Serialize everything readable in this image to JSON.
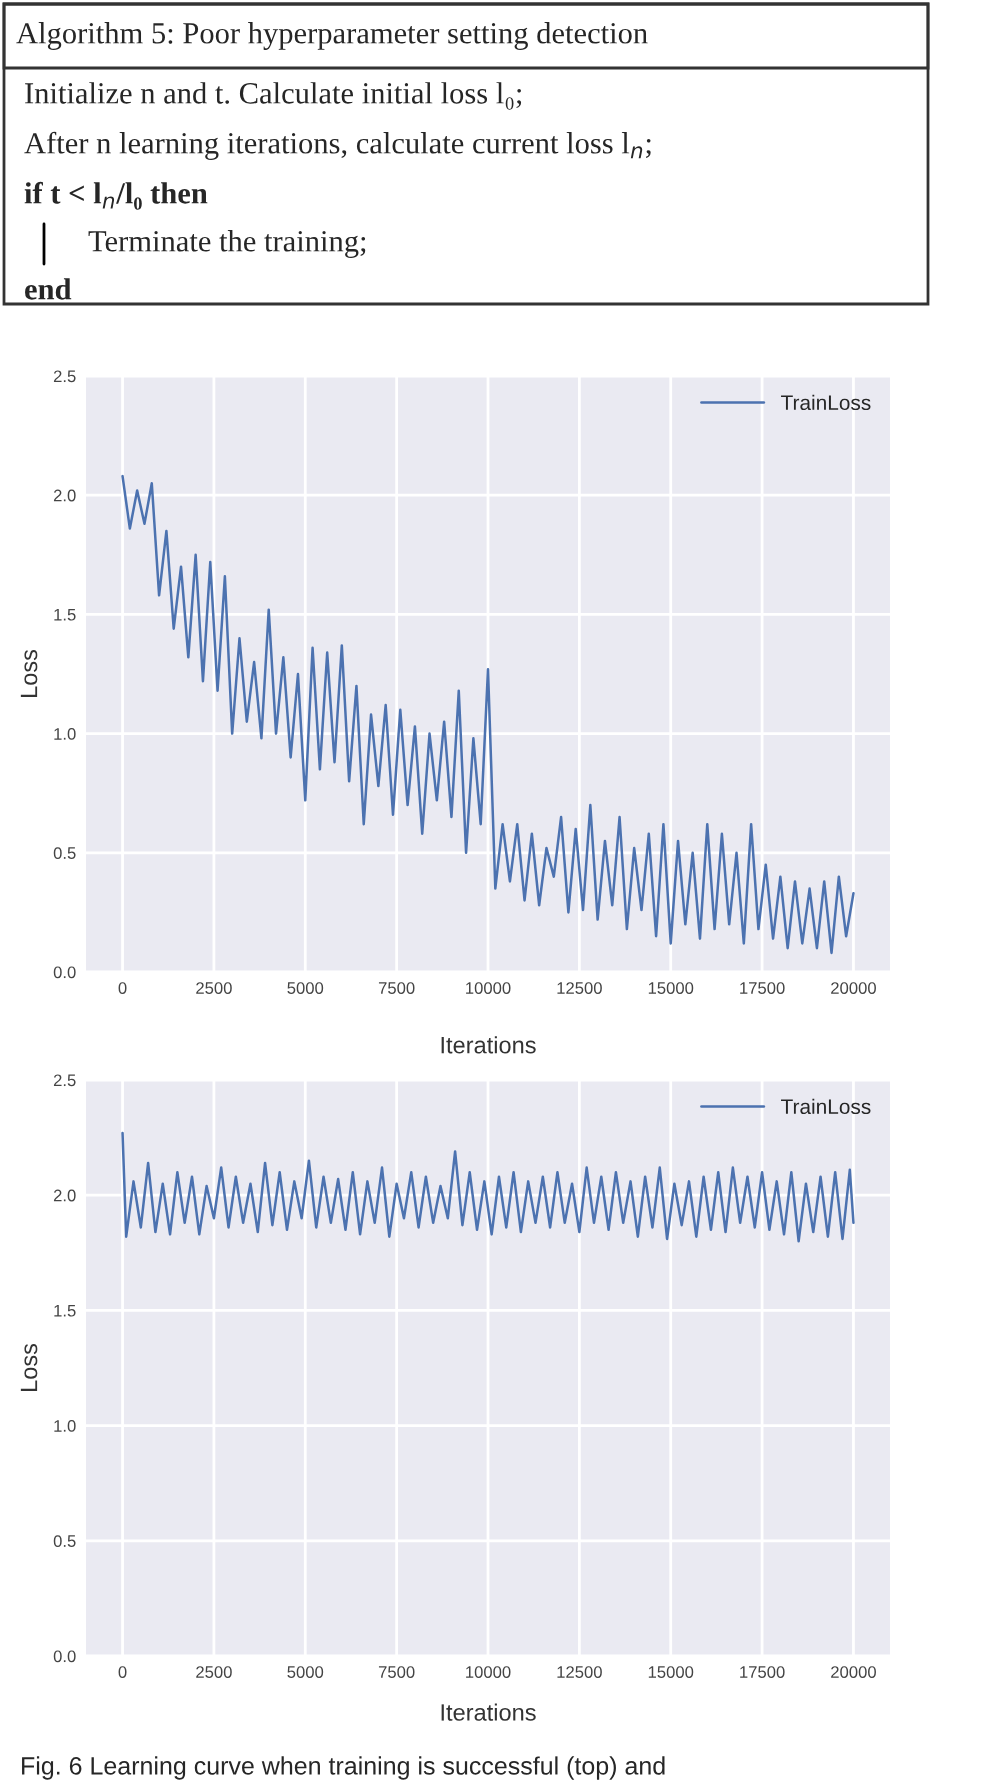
{
  "chart_data": [
    {
      "type": "line",
      "xlabel": "Iterations",
      "ylabel": "Loss",
      "annotations": [
        "Algorithm 5: Poor hyperparameter setting detection",
        "Initialize n and t. Calculate initial loss l₀;",
        "After n learning iterations, calculate current loss l$_{n}$;",
        "if t < l$_{n}$/l₀ then",
        "Terminate the training;",
        "end"
      ],
      "xlim": [
        -1000,
        21000
      ],
      "xticks": [
        0,
        2500,
        5000,
        7500,
        10000,
        12500,
        15000,
        17500,
        20000
      ],
      "ylim": [
        0,
        2.5
      ],
      "yticks": [
        {
          "value": 0,
          "label": "0.0"
        },
        0.5,
        {
          "value": 1,
          "label": "1.0"
        },
        1.5,
        {
          "value": 2,
          "label": "2.0"
        },
        2.5
      ],
      "grid": true,
      "legend": "top right",
      "marker": "none",
      "line_style": "solid",
      "series": [
        {
          "name": "TrainLoss",
          "color": "#4c72b0",
          "x": [
            0,
            200,
            400,
            600,
            800,
            1000,
            1200,
            1400,
            1600,
            1800,
            2000,
            2200,
            2400,
            2600,
            2800,
            3000,
            3200,
            3400,
            3600,
            3800,
            4000,
            4200,
            4400,
            4600,
            4800,
            5000,
            5200,
            5400,
            5600,
            5800,
            6000,
            6200,
            6400,
            6600,
            6800,
            7000,
            7200,
            7400,
            7600,
            7800,
            8000,
            8200,
            8400,
            8600,
            8800,
            9000,
            9200,
            9400,
            9600,
            9800,
            10000,
            10200,
            10400,
            10600,
            10800,
            11000,
            11200,
            11400,
            11600,
            11800,
            12000,
            12200,
            12400,
            12600,
            12800,
            13000,
            13200,
            13400,
            13600,
            13800,
            14000,
            14200,
            14400,
            14600,
            14800,
            15000,
            15200,
            15400,
            15600,
            15800,
            16000,
            16200,
            16400,
            16600,
            16800,
            17000,
            17200,
            17400,
            17600,
            17800,
            18000,
            18200,
            18400,
            18600,
            18800,
            19000,
            19200,
            19400,
            19600,
            19800,
            20000
          ],
          "values": [
            2.08,
            1.86,
            2.02,
            1.88,
            2.05,
            1.58,
            1.85,
            1.44,
            1.7,
            1.32,
            1.75,
            1.22,
            1.72,
            1.18,
            1.66,
            1.0,
            1.4,
            1.05,
            1.3,
            0.98,
            1.52,
            1.0,
            1.32,
            0.9,
            1.25,
            0.72,
            1.36,
            0.85,
            1.34,
            0.88,
            1.37,
            0.8,
            1.2,
            0.62,
            1.08,
            0.78,
            1.12,
            0.66,
            1.1,
            0.7,
            1.03,
            0.58,
            1.0,
            0.72,
            1.05,
            0.65,
            1.18,
            0.5,
            0.98,
            0.62,
            1.27,
            0.35,
            0.62,
            0.38,
            0.62,
            0.3,
            0.58,
            0.28,
            0.52,
            0.4,
            0.65,
            0.25,
            0.6,
            0.26,
            0.7,
            0.22,
            0.55,
            0.28,
            0.65,
            0.18,
            0.52,
            0.26,
            0.58,
            0.15,
            0.62,
            0.12,
            0.55,
            0.2,
            0.5,
            0.14,
            0.62,
            0.18,
            0.58,
            0.2,
            0.5,
            0.12,
            0.62,
            0.18,
            0.45,
            0.14,
            0.4,
            0.1,
            0.38,
            0.12,
            0.35,
            0.1,
            0.38,
            0.08,
            0.4,
            0.15,
            0.33
          ]
        }
      ]
    },
    {
      "type": "line",
      "xlabel": "Iterations",
      "ylabel": "Loss",
      "annotations": [
        "Fig. 6 Learning curve when training is successful (top) and"
      ],
      "xlim": [
        -1000,
        21000
      ],
      "xticks": [
        0,
        2500,
        5000,
        7500,
        10000,
        12500,
        15000,
        17500,
        20000
      ],
      "ylim": [
        0,
        2.5
      ],
      "yticks": [
        {
          "value": 0,
          "label": "0.0"
        },
        0.5,
        {
          "value": 1,
          "label": "1.0"
        },
        1.5,
        {
          "value": 2,
          "label": "2.0"
        },
        2.5
      ],
      "grid": true,
      "legend": "top right",
      "marker": "none",
      "line_style": "solid",
      "series": [
        {
          "name": "TrainLoss",
          "color": "#4c72b0",
          "x": [
            0,
            100,
            300,
            500,
            700,
            900,
            1100,
            1300,
            1500,
            1700,
            1900,
            2100,
            2300,
            2500,
            2700,
            2900,
            3100,
            3300,
            3500,
            3700,
            3900,
            4100,
            4300,
            4500,
            4700,
            4900,
            5100,
            5300,
            5500,
            5700,
            5900,
            6100,
            6300,
            6500,
            6700,
            6900,
            7100,
            7300,
            7500,
            7700,
            7900,
            8100,
            8300,
            8500,
            8700,
            8900,
            9100,
            9300,
            9500,
            9700,
            9900,
            10100,
            10300,
            10500,
            10700,
            10900,
            11100,
            11300,
            11500,
            11700,
            11900,
            12100,
            12300,
            12500,
            12700,
            12900,
            13100,
            13300,
            13500,
            13700,
            13900,
            14100,
            14300,
            14500,
            14700,
            14900,
            15100,
            15300,
            15500,
            15700,
            15900,
            16100,
            16300,
            16500,
            16700,
            16900,
            17100,
            17300,
            17500,
            17700,
            17900,
            18100,
            18300,
            18500,
            18700,
            18900,
            19100,
            19300,
            19500,
            19700,
            19900,
            20000
          ],
          "values": [
            2.27,
            1.82,
            2.06,
            1.86,
            2.14,
            1.84,
            2.05,
            1.83,
            2.1,
            1.88,
            2.08,
            1.83,
            2.04,
            1.9,
            2.12,
            1.86,
            2.08,
            1.88,
            2.05,
            1.84,
            2.14,
            1.87,
            2.1,
            1.85,
            2.06,
            1.9,
            2.15,
            1.86,
            2.08,
            1.88,
            2.07,
            1.85,
            2.1,
            1.83,
            2.06,
            1.88,
            2.12,
            1.82,
            2.05,
            1.9,
            2.1,
            1.86,
            2.08,
            1.88,
            2.04,
            1.9,
            2.19,
            1.87,
            2.1,
            1.85,
            2.06,
            1.83,
            2.08,
            1.86,
            2.1,
            1.84,
            2.06,
            1.88,
            2.08,
            1.86,
            2.1,
            1.88,
            2.05,
            1.84,
            2.12,
            1.88,
            2.08,
            1.85,
            2.1,
            1.88,
            2.06,
            1.82,
            2.08,
            1.86,
            2.12,
            1.81,
            2.05,
            1.87,
            2.06,
            1.82,
            2.08,
            1.85,
            2.1,
            1.84,
            2.12,
            1.88,
            2.08,
            1.86,
            2.1,
            1.85,
            2.06,
            1.83,
            2.1,
            1.8,
            2.05,
            1.84,
            2.08,
            1.82,
            2.1,
            1.81,
            2.11,
            1.88
          ]
        }
      ]
    }
  ]
}
